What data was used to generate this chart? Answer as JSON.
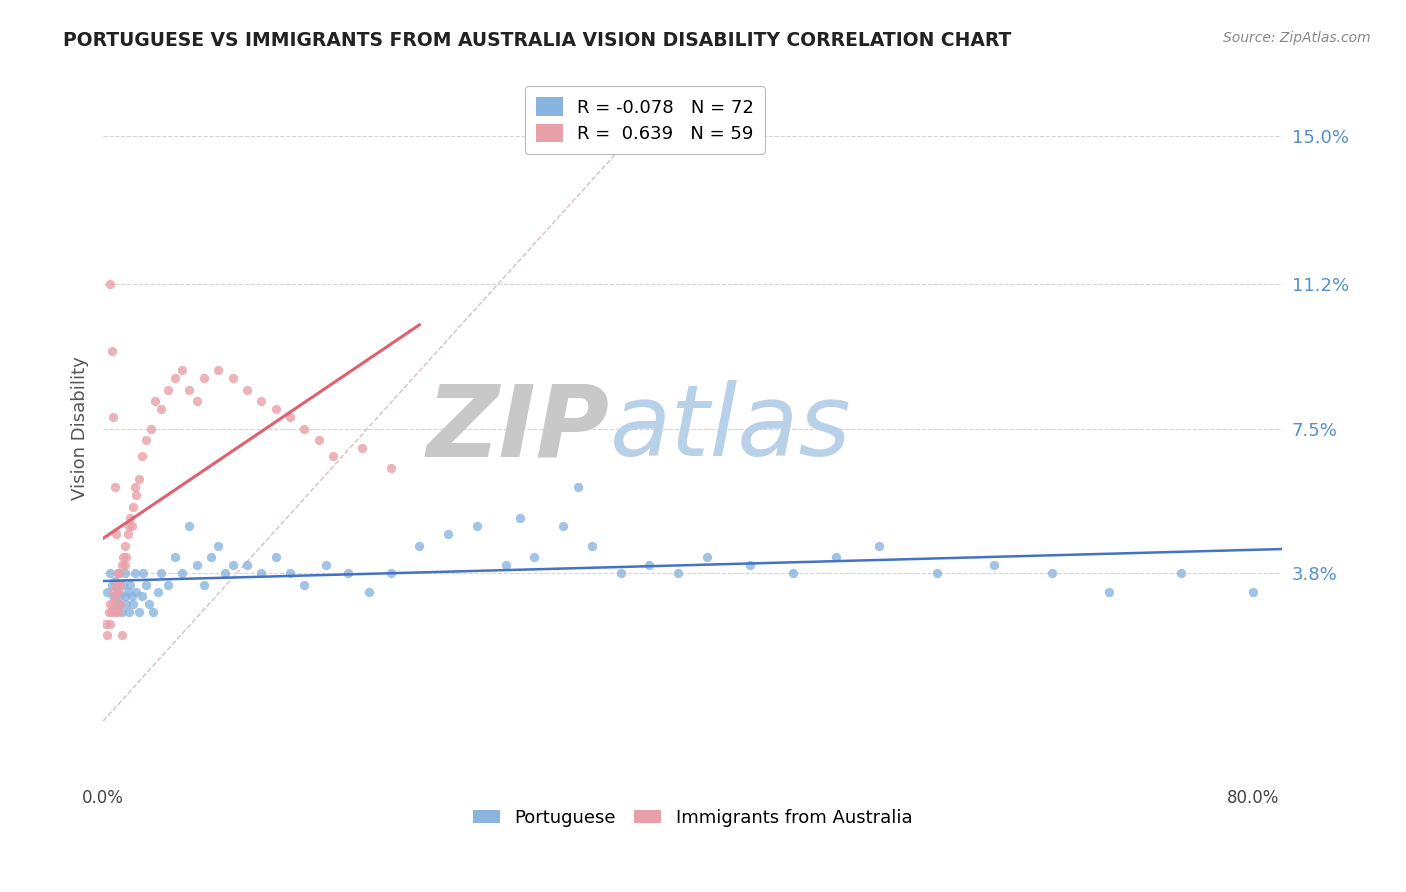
{
  "title": "PORTUGUESE VS IMMIGRANTS FROM AUSTRALIA VISION DISABILITY CORRELATION CHART",
  "source": "Source: ZipAtlas.com",
  "ylabel": "Vision Disability",
  "blue_label": "Portuguese",
  "pink_label": "Immigrants from Australia",
  "R_blue": -0.078,
  "N_blue": 72,
  "R_pink": 0.639,
  "N_pink": 59,
  "blue_color": "#8ab4e0",
  "pink_color": "#e8a0a8",
  "blue_line_color": "#4472c4",
  "pink_line_color": "#e06070",
  "dash_color": "#d0b0b0",
  "grid_color": "#d0d0d0",
  "ytick_color": "#5590cc",
  "xlim": [
    0.0,
    0.82
  ],
  "ylim": [
    -0.015,
    0.165
  ],
  "ytick_vals": [
    0.038,
    0.075,
    0.112,
    0.15
  ],
  "ytick_labels": [
    "3.8%",
    "7.5%",
    "11.2%",
    "15.0%"
  ],
  "blue_scatter_x": [
    0.003,
    0.005,
    0.006,
    0.007,
    0.008,
    0.009,
    0.01,
    0.01,
    0.011,
    0.012,
    0.013,
    0.014,
    0.015,
    0.015,
    0.016,
    0.017,
    0.018,
    0.019,
    0.02,
    0.021,
    0.022,
    0.023,
    0.025,
    0.027,
    0.028,
    0.03,
    0.032,
    0.035,
    0.038,
    0.04,
    0.045,
    0.05,
    0.055,
    0.06,
    0.065,
    0.07,
    0.075,
    0.08,
    0.085,
    0.09,
    0.1,
    0.11,
    0.12,
    0.13,
    0.14,
    0.155,
    0.17,
    0.185,
    0.2,
    0.22,
    0.24,
    0.26,
    0.28,
    0.3,
    0.32,
    0.34,
    0.36,
    0.38,
    0.4,
    0.42,
    0.45,
    0.48,
    0.51,
    0.54,
    0.58,
    0.62,
    0.66,
    0.7,
    0.75,
    0.8,
    0.29,
    0.33
  ],
  "blue_scatter_y": [
    0.033,
    0.038,
    0.035,
    0.032,
    0.036,
    0.03,
    0.033,
    0.038,
    0.03,
    0.032,
    0.028,
    0.035,
    0.032,
    0.038,
    0.03,
    0.033,
    0.028,
    0.035,
    0.032,
    0.03,
    0.038,
    0.033,
    0.028,
    0.032,
    0.038,
    0.035,
    0.03,
    0.028,
    0.033,
    0.038,
    0.035,
    0.042,
    0.038,
    0.05,
    0.04,
    0.035,
    0.042,
    0.045,
    0.038,
    0.04,
    0.04,
    0.038,
    0.042,
    0.038,
    0.035,
    0.04,
    0.038,
    0.033,
    0.038,
    0.045,
    0.048,
    0.05,
    0.04,
    0.042,
    0.05,
    0.045,
    0.038,
    0.04,
    0.038,
    0.042,
    0.04,
    0.038,
    0.042,
    0.045,
    0.038,
    0.04,
    0.038,
    0.033,
    0.038,
    0.033,
    0.052,
    0.06
  ],
  "pink_scatter_x": [
    0.002,
    0.003,
    0.004,
    0.005,
    0.005,
    0.006,
    0.007,
    0.007,
    0.008,
    0.008,
    0.009,
    0.01,
    0.01,
    0.011,
    0.012,
    0.013,
    0.014,
    0.015,
    0.015,
    0.016,
    0.017,
    0.018,
    0.019,
    0.02,
    0.021,
    0.022,
    0.023,
    0.025,
    0.027,
    0.03,
    0.033,
    0.036,
    0.04,
    0.045,
    0.05,
    0.055,
    0.06,
    0.065,
    0.07,
    0.08,
    0.09,
    0.1,
    0.11,
    0.12,
    0.13,
    0.14,
    0.15,
    0.16,
    0.18,
    0.2,
    0.005,
    0.006,
    0.007,
    0.008,
    0.009,
    0.01,
    0.011,
    0.012,
    0.013
  ],
  "pink_scatter_y": [
    0.025,
    0.022,
    0.028,
    0.025,
    0.03,
    0.028,
    0.03,
    0.033,
    0.032,
    0.028,
    0.035,
    0.033,
    0.028,
    0.038,
    0.035,
    0.04,
    0.042,
    0.04,
    0.045,
    0.042,
    0.048,
    0.05,
    0.052,
    0.05,
    0.055,
    0.06,
    0.058,
    0.062,
    0.068,
    0.072,
    0.075,
    0.082,
    0.08,
    0.085,
    0.088,
    0.09,
    0.085,
    0.082,
    0.088,
    0.09,
    0.088,
    0.085,
    0.082,
    0.08,
    0.078,
    0.075,
    0.072,
    0.068,
    0.07,
    0.065,
    0.112,
    0.095,
    0.078,
    0.06,
    0.048,
    0.038,
    0.035,
    0.03,
    0.022
  ],
  "zip_color": "#c8c8c8",
  "atlas_color": "#b8d0e8"
}
